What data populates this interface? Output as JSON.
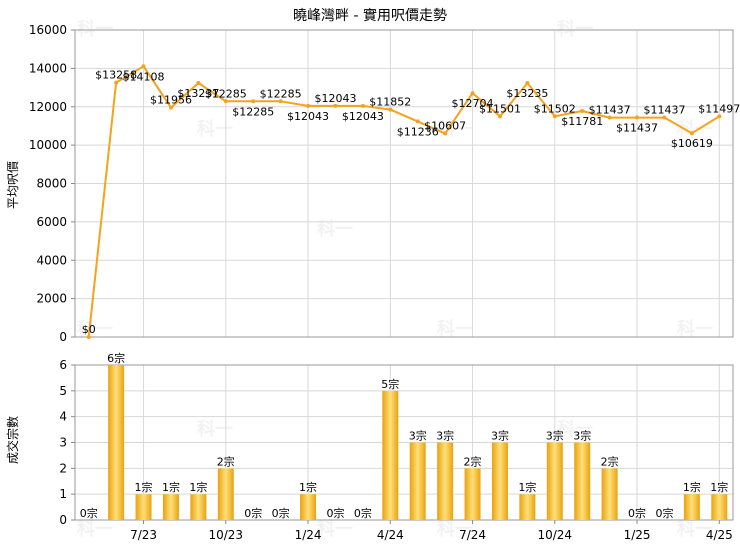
{
  "title": "曉峰灣畔 - 實用呎價走勢",
  "watermark": "科一",
  "colors": {
    "line": "#f5a21c",
    "bar_light": "#ffe07a",
    "bar_dark": "#e9a20f",
    "grid": "#d8d8d8",
    "plot_border": "#9a9a9a"
  },
  "chart_data": [
    {
      "type": "line",
      "title": "曉峰灣畔 - 實用呎價走勢",
      "ylabel": "平均呎價",
      "ylim": [
        0,
        16000
      ],
      "yticks": [
        "0",
        "2000",
        "4000",
        "6000",
        "8000",
        "10000",
        "12000",
        "14000",
        "16000"
      ],
      "grid": true,
      "series": [
        {
          "values": [
            0,
            13258,
            14108,
            11956,
            13237,
            12285,
            12285,
            12285,
            12043,
            12043,
            12043,
            11852,
            11236,
            10607,
            12704,
            11501,
            13235,
            11502,
            11781,
            11437,
            11437,
            11437,
            10619,
            11497
          ],
          "labels": [
            "$0",
            "$13258",
            "$14108",
            "$11956",
            "$13237",
            "$12285",
            "$12285",
            "$12285",
            "$12043",
            "$12043",
            "$12043",
            "$11852",
            "$11236",
            "$10607",
            "$12704",
            "$11501",
            "$13235",
            "$11502",
            "$11781",
            "$11437",
            "$11437",
            "$11437",
            "$10619",
            "$11497"
          ]
        }
      ]
    },
    {
      "type": "bar",
      "ylabel": "成交宗數",
      "ylim": [
        0,
        6
      ],
      "yticks": [
        "0",
        "1",
        "2",
        "3",
        "4",
        "5",
        "6"
      ],
      "xticks": [
        {
          "index": 2,
          "label": "7/23"
        },
        {
          "index": 5,
          "label": "10/23"
        },
        {
          "index": 8,
          "label": "1/24"
        },
        {
          "index": 11,
          "label": "4/24"
        },
        {
          "index": 14,
          "label": "7/24"
        },
        {
          "index": 17,
          "label": "10/24"
        },
        {
          "index": 20,
          "label": "1/25"
        },
        {
          "index": 23,
          "label": "4/25"
        }
      ],
      "grid": true,
      "series": [
        {
          "values": [
            0,
            6,
            1,
            1,
            1,
            2,
            0,
            0,
            1,
            0,
            0,
            5,
            3,
            3,
            2,
            3,
            1,
            3,
            3,
            2,
            0,
            0,
            1,
            1
          ],
          "labels": [
            "0宗",
            "6宗",
            "1宗",
            "1宗",
            "1宗",
            "2宗",
            "0宗",
            "0宗",
            "1宗",
            "0宗",
            "0宗",
            "5宗",
            "3宗",
            "3宗",
            "2宗",
            "3宗",
            "1宗",
            "3宗",
            "3宗",
            "2宗",
            "0宗",
            "0宗",
            "1宗",
            "1宗"
          ]
        }
      ]
    }
  ]
}
